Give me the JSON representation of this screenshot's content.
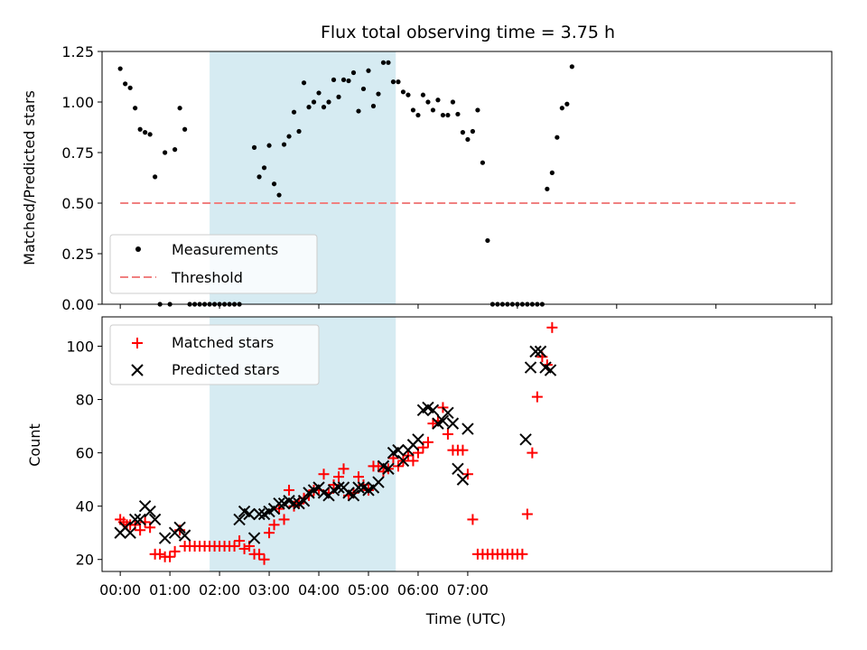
{
  "chart_data": [
    {
      "type": "scatter",
      "title": "Flux total observing time = 3.75 h",
      "xlabel": "",
      "ylabel": "Matched/Predicted stars",
      "xlim_minutes": [
        -22,
        860
      ],
      "ylim": [
        0,
        1.25
      ],
      "yticks": [
        0.0,
        0.25,
        0.5,
        0.75,
        1.0,
        1.25
      ],
      "ytick_labels": [
        "0.00",
        "0.25",
        "0.50",
        "0.75",
        "1.00",
        "1.25"
      ],
      "xticks_minutes": [
        0,
        120,
        240,
        360,
        480,
        600,
        720,
        840
      ],
      "highlight_span_minutes": [
        108,
        333
      ],
      "highlight_color": "#add8e6",
      "legend": {
        "placement": "lower-left",
        "entries": [
          "Measurements",
          "Threshold"
        ]
      },
      "threshold": {
        "name": "Threshold",
        "value": 0.5,
        "x_range_minutes": [
          0,
          816
        ],
        "color": "#f08080"
      },
      "series": [
        {
          "name": "Measurements",
          "marker": "dot",
          "color": "#000000",
          "points": [
            [
              0,
              1.165
            ],
            [
              6,
              1.09
            ],
            [
              12,
              1.07
            ],
            [
              18,
              0.97
            ],
            [
              24,
              0.865
            ],
            [
              30,
              0.85
            ],
            [
              36,
              0.84
            ],
            [
              42,
              0.63
            ],
            [
              48,
              0.0
            ],
            [
              54,
              0.75
            ],
            [
              60,
              0.0
            ],
            [
              66,
              0.765
            ],
            [
              72,
              0.97
            ],
            [
              78,
              0.865
            ],
            [
              84,
              0.0
            ],
            [
              90,
              0.0
            ],
            [
              96,
              0.0
            ],
            [
              102,
              0.0
            ],
            [
              108,
              0.0
            ],
            [
              114,
              0.0
            ],
            [
              120,
              0.0
            ],
            [
              126,
              0.0
            ],
            [
              132,
              0.0
            ],
            [
              138,
              0.0
            ],
            [
              144,
              0.0
            ],
            [
              162,
              0.775
            ],
            [
              168,
              0.63
            ],
            [
              174,
              0.675
            ],
            [
              180,
              0.785
            ],
            [
              186,
              0.595
            ],
            [
              192,
              0.54
            ],
            [
              198,
              0.79
            ],
            [
              204,
              0.83
            ],
            [
              210,
              0.95
            ],
            [
              216,
              0.855
            ],
            [
              222,
              1.095
            ],
            [
              228,
              0.975
            ],
            [
              234,
              1.0
            ],
            [
              240,
              1.045
            ],
            [
              246,
              0.975
            ],
            [
              252,
              1.0
            ],
            [
              258,
              1.11
            ],
            [
              264,
              1.025
            ],
            [
              270,
              1.11
            ],
            [
              276,
              1.105
            ],
            [
              282,
              1.145
            ],
            [
              288,
              0.955
            ],
            [
              294,
              1.065
            ],
            [
              300,
              1.155
            ],
            [
              306,
              0.98
            ],
            [
              312,
              1.04
            ],
            [
              318,
              1.195
            ],
            [
              324,
              1.195
            ],
            [
              330,
              1.1
            ],
            [
              336,
              1.1
            ],
            [
              342,
              1.05
            ],
            [
              348,
              1.035
            ],
            [
              354,
              0.96
            ],
            [
              360,
              0.935
            ],
            [
              366,
              1.035
            ],
            [
              372,
              1.0
            ],
            [
              378,
              0.96
            ],
            [
              384,
              1.01
            ],
            [
              390,
              0.935
            ],
            [
              396,
              0.935
            ],
            [
              402,
              1.0
            ],
            [
              408,
              0.94
            ],
            [
              414,
              0.85
            ],
            [
              420,
              0.815
            ],
            [
              426,
              0.855
            ],
            [
              432,
              0.96
            ],
            [
              438,
              0.7
            ],
            [
              444,
              0.315
            ],
            [
              450,
              0.0
            ],
            [
              456,
              0.0
            ],
            [
              462,
              0.0
            ],
            [
              468,
              0.0
            ],
            [
              474,
              0.0
            ],
            [
              480,
              0.0
            ],
            [
              486,
              0.0
            ],
            [
              492,
              0.0
            ],
            [
              498,
              0.0
            ],
            [
              504,
              0.0
            ],
            [
              510,
              0.0
            ],
            [
              516,
              0.57
            ],
            [
              522,
              0.65
            ],
            [
              528,
              0.825
            ],
            [
              534,
              0.97
            ],
            [
              540,
              0.99
            ],
            [
              546,
              1.175
            ]
          ]
        }
      ]
    },
    {
      "type": "scatter",
      "title": "",
      "xlabel": "Time (UTC)",
      "ylabel": "Count",
      "xlim_minutes": [
        -22,
        860
      ],
      "ylim": [
        15.5,
        111
      ],
      "yticks": [
        20,
        40,
        60,
        80,
        100
      ],
      "ytick_labels": [
        "20",
        "40",
        "60",
        "80",
        "100"
      ],
      "xticks_minutes": [
        0,
        60,
        120,
        180,
        240,
        300,
        360,
        420
      ],
      "xtick_labels": [
        "00:00",
        "01:00",
        "02:00",
        "03:00",
        "04:00",
        "05:00",
        "06:00",
        "07:00"
      ],
      "highlight_span_minutes": [
        108,
        333
      ],
      "highlight_color": "#add8e6",
      "legend": {
        "placement": "upper-left",
        "entries": [
          "Matched stars",
          "Predicted stars"
        ]
      },
      "series": [
        {
          "name": "Matched stars",
          "marker": "plus",
          "color": "#ff0000",
          "points": [
            [
              0,
              35
            ],
            [
              4,
              34
            ],
            [
              8,
              33
            ],
            [
              12,
              33
            ],
            [
              18,
              33
            ],
            [
              24,
              31
            ],
            [
              30,
              34
            ],
            [
              36,
              32
            ],
            [
              42,
              22
            ],
            [
              48,
              22
            ],
            [
              54,
              21
            ],
            [
              60,
              21
            ],
            [
              66,
              23
            ],
            [
              72,
              31
            ],
            [
              78,
              25
            ],
            [
              84,
              25
            ],
            [
              90,
              25
            ],
            [
              96,
              25
            ],
            [
              102,
              25
            ],
            [
              108,
              25
            ],
            [
              114,
              25
            ],
            [
              120,
              25
            ],
            [
              126,
              25
            ],
            [
              132,
              25
            ],
            [
              138,
              25
            ],
            [
              144,
              27
            ],
            [
              150,
              24
            ],
            [
              156,
              25
            ],
            [
              162,
              22
            ],
            [
              168,
              22
            ],
            [
              174,
              20
            ],
            [
              180,
              30
            ],
            [
              186,
              33
            ],
            [
              192,
              39
            ],
            [
              198,
              35
            ],
            [
              204,
              46
            ],
            [
              210,
              40
            ],
            [
              216,
              41
            ],
            [
              222,
              43
            ],
            [
              228,
              44
            ],
            [
              234,
              46
            ],
            [
              240,
              46
            ],
            [
              246,
              52
            ],
            [
              252,
              45
            ],
            [
              258,
              48
            ],
            [
              264,
              51
            ],
            [
              270,
              54
            ],
            [
              276,
              44
            ],
            [
              282,
              45
            ],
            [
              288,
              51
            ],
            [
              294,
              48
            ],
            [
              300,
              46
            ],
            [
              306,
              55
            ],
            [
              312,
              55
            ],
            [
              318,
              53
            ],
            [
              324,
              54
            ],
            [
              330,
              58
            ],
            [
              336,
              55
            ],
            [
              342,
              57
            ],
            [
              348,
              59
            ],
            [
              354,
              57
            ],
            [
              360,
              60
            ],
            [
              366,
              62
            ],
            [
              372,
              64
            ],
            [
              378,
              71
            ],
            [
              384,
              72
            ],
            [
              390,
              77
            ],
            [
              396,
              67
            ],
            [
              402,
              61
            ],
            [
              408,
              61
            ],
            [
              414,
              61
            ],
            [
              420,
              52
            ],
            [
              426,
              35
            ],
            [
              432,
              22
            ],
            [
              438,
              22
            ],
            [
              444,
              22
            ],
            [
              450,
              22
            ],
            [
              456,
              22
            ],
            [
              462,
              22
            ],
            [
              468,
              22
            ],
            [
              474,
              22
            ],
            [
              480,
              22
            ],
            [
              486,
              22
            ],
            [
              492,
              37
            ],
            [
              498,
              60
            ],
            [
              504,
              81
            ],
            [
              510,
              96
            ],
            [
              516,
              93
            ],
            [
              522,
              107
            ]
          ]
        },
        {
          "name": "Predicted stars",
          "marker": "x",
          "color": "#000000",
          "points": [
            [
              0,
              30
            ],
            [
              6,
              32
            ],
            [
              12,
              30
            ],
            [
              18,
              35
            ],
            [
              24,
              35
            ],
            [
              30,
              40
            ],
            [
              36,
              38
            ],
            [
              42,
              35
            ],
            [
              54,
              28
            ],
            [
              66,
              30
            ],
            [
              72,
              32
            ],
            [
              78,
              29
            ],
            [
              144,
              35
            ],
            [
              150,
              38
            ],
            [
              156,
              37
            ],
            [
              162,
              28
            ],
            [
              168,
              37
            ],
            [
              174,
              37
            ],
            [
              180,
              38
            ],
            [
              186,
              39
            ],
            [
              192,
              41
            ],
            [
              198,
              41
            ],
            [
              204,
              42
            ],
            [
              210,
              41
            ],
            [
              216,
              41
            ],
            [
              222,
              42
            ],
            [
              228,
              45
            ],
            [
              234,
              46
            ],
            [
              240,
              47
            ],
            [
              246,
              45
            ],
            [
              252,
              44
            ],
            [
              258,
              46
            ],
            [
              264,
              47
            ],
            [
              270,
              47
            ],
            [
              276,
              45
            ],
            [
              282,
              44
            ],
            [
              288,
              47
            ],
            [
              294,
              47
            ],
            [
              300,
              46
            ],
            [
              306,
              47
            ],
            [
              312,
              49
            ],
            [
              318,
              55
            ],
            [
              324,
              54
            ],
            [
              330,
              60
            ],
            [
              336,
              61
            ],
            [
              342,
              57
            ],
            [
              348,
              61
            ],
            [
              354,
              63
            ],
            [
              360,
              65
            ],
            [
              366,
              76
            ],
            [
              372,
              77
            ],
            [
              378,
              76
            ],
            [
              384,
              71
            ],
            [
              390,
              72
            ],
            [
              396,
              75
            ],
            [
              402,
              71
            ],
            [
              408,
              54
            ],
            [
              414,
              50
            ],
            [
              420,
              69
            ],
            [
              490,
              65
            ],
            [
              496,
              92
            ],
            [
              502,
              98
            ],
            [
              508,
              98
            ],
            [
              514,
              92
            ],
            [
              520,
              91
            ]
          ]
        }
      ]
    }
  ]
}
